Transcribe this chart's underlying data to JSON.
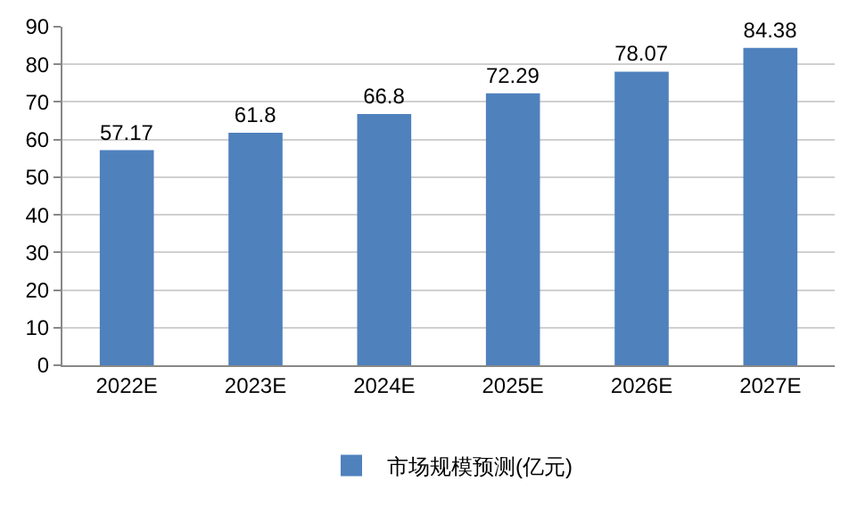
{
  "chart_data": {
    "type": "bar",
    "categories": [
      "2022E",
      "2023E",
      "2024E",
      "2025E",
      "2026E",
      "2027E"
    ],
    "series": [
      {
        "name": "市场规模预测(亿元)",
        "color": "#4f81bd",
        "values": [
          57.17,
          61.8,
          66.8,
          72.29,
          78.07,
          84.38
        ]
      }
    ],
    "ylim": [
      0,
      90
    ],
    "yticks": [
      0,
      10,
      20,
      30,
      40,
      50,
      60,
      70,
      80,
      90
    ],
    "grid": "y",
    "legend": "bottom",
    "data_labels": true
  }
}
